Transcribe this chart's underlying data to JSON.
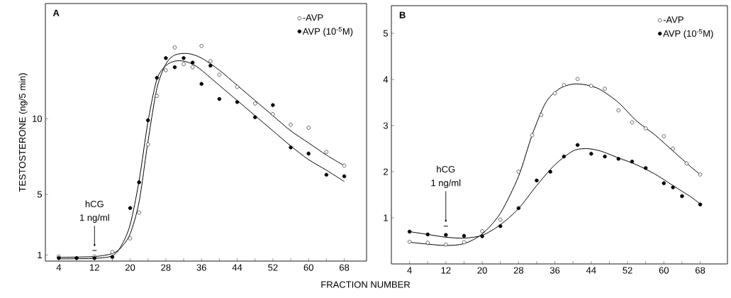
{
  "chart_data": [
    {
      "type": "scatter",
      "xlabel": "FRACTION NUMBER",
      "ylabel": "TESTOSTERONE (ng/5 min)",
      "xlim": [
        1,
        73
      ],
      "ylim": [
        0.6,
        17.6
      ],
      "xticks": [
        4,
        {
          "value": 8,
          "label": null
        },
        12,
        {
          "value": 16,
          "label": null
        },
        20,
        {
          "value": 24,
          "label": null
        },
        28,
        {
          "value": 32,
          "label": null
        },
        36,
        {
          "value": 40,
          "label": null
        },
        44,
        {
          "value": 48,
          "label": null
        },
        52,
        {
          "value": 56,
          "label": null
        },
        60,
        {
          "value": 64,
          "label": null
        },
        68
      ],
      "yticks": [
        1,
        5,
        10
      ],
      "legend": "top right",
      "marker": "circle",
      "annotations": [
        "A",
        "hCG",
        "1 ng/ml"
      ],
      "series": [
        {
          "name": "-AVP",
          "color": "#ffffff",
          "x": [
            4,
            12,
            16,
            20,
            22,
            24,
            26,
            28,
            30,
            32,
            34,
            36,
            38,
            40,
            44,
            48,
            52,
            56,
            60,
            64,
            68
          ],
          "values": [
            0.9,
            0.9,
            1.2,
            2.1,
            3.8,
            8.3,
            11.5,
            13.2,
            14.7,
            13.6,
            13.4,
            14.8,
            13.8,
            12.9,
            12.1,
            11.0,
            10.3,
            9.6,
            9.4,
            7.8,
            6.9
          ]
        },
        {
          "name": "AVP (10$^{-5}$M)",
          "color": "#000000",
          "x": [
            4,
            8,
            12,
            16,
            20,
            22,
            24,
            26,
            28,
            30,
            32,
            34,
            36,
            38,
            40,
            44,
            48,
            52,
            56,
            60,
            64,
            68
          ],
          "values": [
            0.8,
            0.8,
            0.8,
            0.87,
            4.1,
            5.8,
            9.9,
            12.7,
            14.0,
            13.4,
            14.0,
            13.7,
            12.3,
            13.5,
            11.3,
            11.1,
            10.1,
            10.9,
            8.1,
            7.7,
            6.3,
            6.2
          ]
        },
        {
          "type": "line",
          "color": "#000000",
          "marker": "none",
          "x": [
            4,
            12,
            16,
            18,
            20,
            22,
            24,
            26,
            28,
            30,
            33,
            36,
            40,
            44,
            48,
            52,
            56,
            60,
            64,
            68
          ],
          "values": [
            0.85,
            0.9,
            1.1,
            1.5,
            2.4,
            4.5,
            8.5,
            12.0,
            13.6,
            14.2,
            14.3,
            14.0,
            13.2,
            12.2,
            11.2,
            10.2,
            9.2,
            8.4,
            7.6,
            6.9
          ]
        },
        {
          "type": "line",
          "color": "#000000",
          "marker": "none",
          "x": [
            4,
            12,
            16,
            18,
            20,
            22,
            24,
            26,
            28,
            30,
            32,
            34,
            36,
            40,
            44,
            48,
            52,
            56,
            60,
            64,
            68
          ],
          "values": [
            0.75,
            0.78,
            0.95,
            1.6,
            3.0,
            5.9,
            9.8,
            12.6,
            13.5,
            13.8,
            13.8,
            13.6,
            13.2,
            12.2,
            11.2,
            10.2,
            9.2,
            8.2,
            7.3,
            6.6,
            5.85
          ]
        }
      ]
    },
    {
      "type": "scatter",
      "xlim": [
        0,
        74
      ],
      "ylim": [
        0,
        5.6
      ],
      "xticks": [
        4,
        {
          "value": 8,
          "label": null
        },
        12,
        {
          "value": 16,
          "label": null
        },
        20,
        {
          "value": 24,
          "label": null
        },
        28,
        {
          "value": 32,
          "label": null
        },
        36,
        {
          "value": 40,
          "label": null
        },
        44,
        {
          "value": 48,
          "label": null
        },
        52,
        {
          "value": 56,
          "label": null
        },
        60,
        {
          "value": 64,
          "label": null
        },
        68
      ],
      "yticks": [
        1,
        2,
        3,
        4,
        5
      ],
      "legend": "top right",
      "marker": "circle",
      "annotations": [
        "B",
        "hCG",
        "1 ng/ml"
      ],
      "series": [
        {
          "name": "-AVP",
          "color": "#ffffff",
          "x": [
            4,
            8,
            12,
            16,
            20,
            24,
            28,
            31,
            33,
            36,
            38,
            41,
            44,
            47,
            50,
            53,
            56,
            60,
            62,
            65,
            68
          ],
          "values": [
            0.48,
            0.46,
            0.42,
            0.47,
            0.71,
            0.96,
            2.0,
            2.79,
            3.23,
            3.7,
            3.88,
            4.01,
            3.86,
            3.8,
            3.33,
            3.07,
            2.94,
            2.77,
            2.5,
            2.18,
            1.94
          ]
        },
        {
          "name": "AVP (10$^{-5}$M)",
          "color": "#000000",
          "x": [
            4,
            8,
            12,
            16,
            20,
            24,
            28,
            32,
            35,
            38,
            41,
            44,
            47,
            50,
            53,
            56,
            60,
            62,
            64,
            68
          ],
          "values": [
            0.7,
            0.64,
            0.63,
            0.61,
            0.6,
            0.82,
            1.21,
            1.81,
            2.0,
            2.33,
            2.58,
            2.39,
            2.33,
            2.28,
            2.22,
            2.08,
            1.75,
            1.66,
            1.47,
            1.29
          ]
        },
        {
          "type": "line",
          "color": "#000000",
          "marker": "none",
          "x": [
            4,
            8,
            12,
            16,
            20,
            24,
            28,
            31,
            34,
            37,
            40,
            43,
            46,
            50,
            54,
            58,
            62,
            66,
            68
          ],
          "values": [
            0.47,
            0.43,
            0.4,
            0.44,
            0.65,
            1.1,
            1.9,
            2.8,
            3.5,
            3.8,
            3.9,
            3.88,
            3.78,
            3.5,
            3.1,
            2.8,
            2.45,
            2.1,
            1.94
          ]
        },
        {
          "type": "line",
          "color": "#000000",
          "marker": "none",
          "x": [
            4,
            8,
            12,
            16,
            20,
            24,
            28,
            32,
            36,
            40,
            43,
            46,
            50,
            54,
            58,
            62,
            66,
            68
          ],
          "values": [
            0.7,
            0.64,
            0.58,
            0.56,
            0.62,
            0.85,
            1.2,
            1.7,
            2.15,
            2.45,
            2.5,
            2.45,
            2.3,
            2.15,
            1.95,
            1.7,
            1.45,
            1.3
          ]
        }
      ]
    }
  ]
}
